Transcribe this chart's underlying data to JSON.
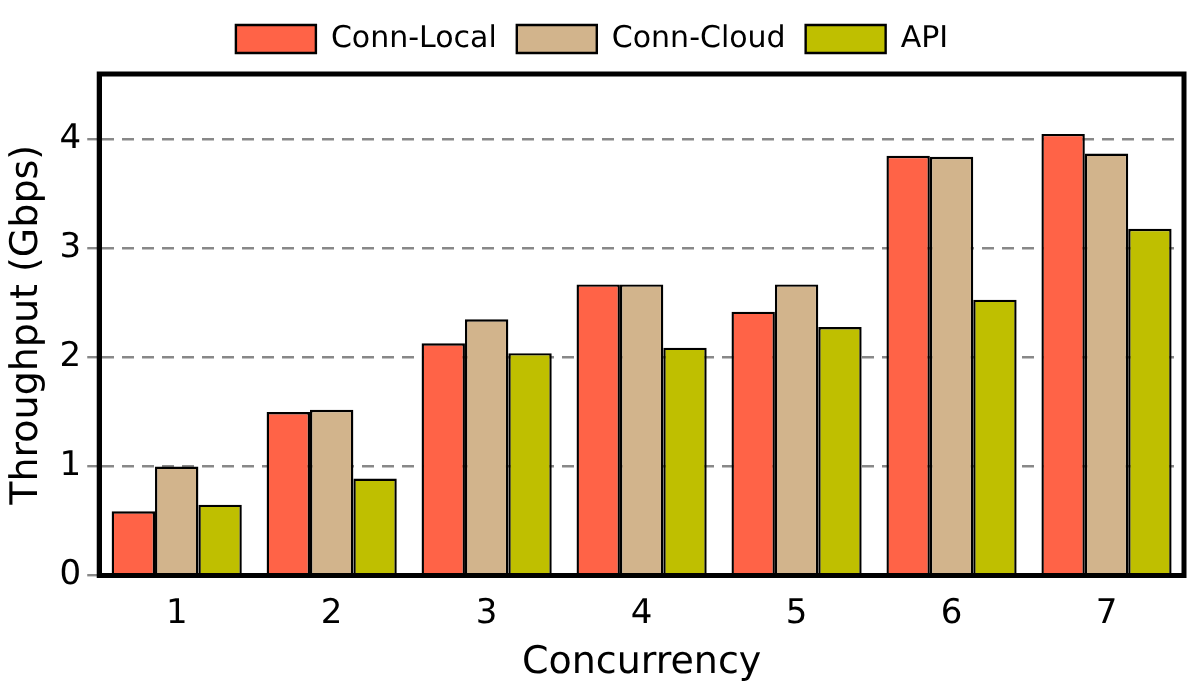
{
  "chart_data": {
    "type": "bar",
    "xlabel": "Concurrency",
    "ylabel": "Throughput (Gbps)",
    "categories": [
      "1",
      "2",
      "3",
      "4",
      "5",
      "6",
      "7"
    ],
    "series": [
      {
        "name": "Conn-Local",
        "color": "#ff6347",
        "values": [
          0.59,
          1.5,
          2.13,
          2.67,
          2.42,
          3.85,
          4.05
        ]
      },
      {
        "name": "Conn-Cloud",
        "color": "#d2b48c",
        "values": [
          1.0,
          1.52,
          2.35,
          2.67,
          2.67,
          3.84,
          3.87
        ]
      },
      {
        "name": "API",
        "color": "#bfbf00",
        "values": [
          0.65,
          0.89,
          2.04,
          2.09,
          2.28,
          2.53,
          3.18
        ]
      }
    ],
    "ylim": [
      0,
      4.6
    ],
    "yticks": [
      0,
      1,
      2,
      3,
      4
    ],
    "grid": "y",
    "legend": "top"
  }
}
